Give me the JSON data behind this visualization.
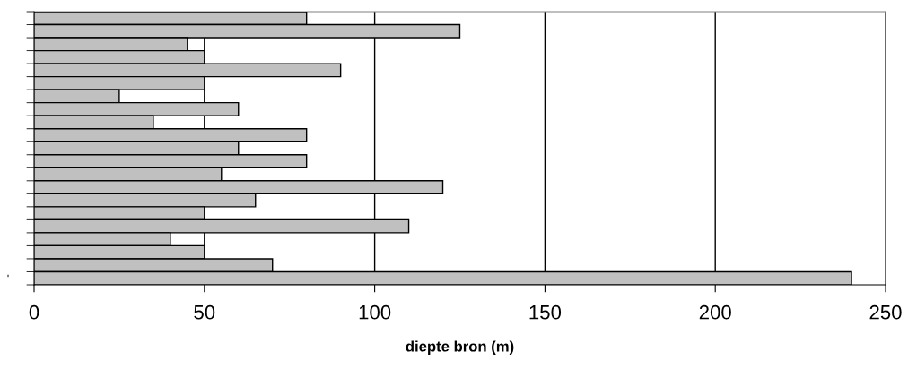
{
  "chart_data": {
    "type": "bar",
    "orientation": "horizontal",
    "xlabel": "diepte bron (m)",
    "categories": [
      null,
      null,
      null,
      null,
      null,
      null,
      null,
      null,
      null,
      null,
      null,
      null,
      null,
      null,
      null,
      null,
      null,
      null,
      null,
      null,
      "'"
    ],
    "values": [
      80,
      125,
      45,
      50,
      90,
      50,
      25,
      60,
      35,
      80,
      60,
      80,
      55,
      120,
      65,
      50,
      110,
      40,
      50,
      70,
      240
    ],
    "color": "#c0c0c0",
    "xlim": [
      0,
      250
    ],
    "xticks": [
      0,
      50,
      100,
      150,
      200,
      250
    ],
    "grid": "x"
  }
}
